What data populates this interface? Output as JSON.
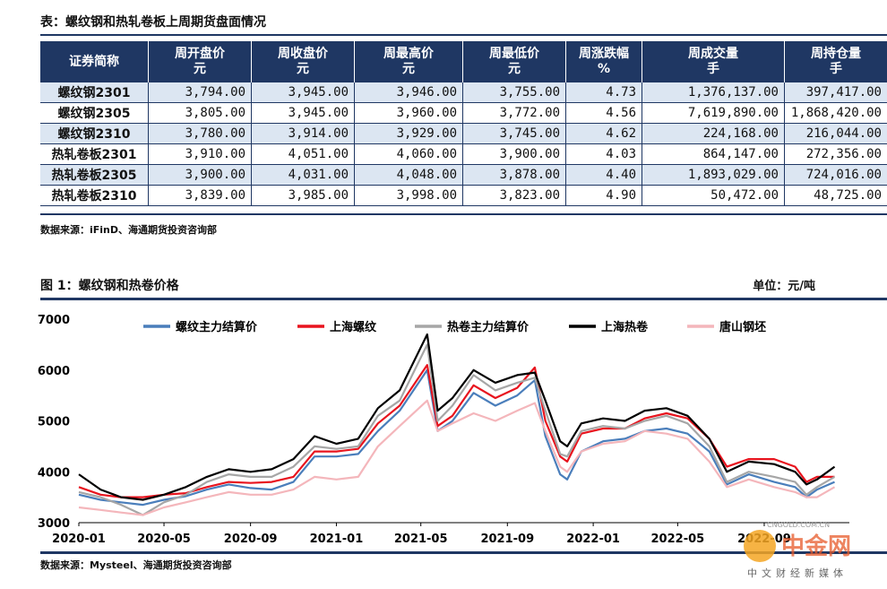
{
  "table": {
    "title": "表：螺纹钢和热轧卷板上周期货盘面情况",
    "headers": [
      {
        "line1": "证券简称",
        "line2": ""
      },
      {
        "line1": "周开盘价",
        "line2": "元"
      },
      {
        "line1": "周收盘价",
        "line2": "元"
      },
      {
        "line1": "周最高价",
        "line2": "元"
      },
      {
        "line1": "周最低价",
        "line2": "元"
      },
      {
        "line1": "周涨跌幅",
        "line2": "%"
      },
      {
        "line1": "周成交量",
        "line2": "手"
      },
      {
        "line1": "周持仓量",
        "line2": "手"
      }
    ],
    "rows": [
      [
        "螺纹钢2301",
        "3,794.00",
        "3,945.00",
        "3,946.00",
        "3,755.00",
        "4.73",
        "1,376,137.00",
        "397,417.00"
      ],
      [
        "螺纹钢2305",
        "3,805.00",
        "3,945.00",
        "3,960.00",
        "3,772.00",
        "4.56",
        "7,619,890.00",
        "1,868,420.00"
      ],
      [
        "螺纹钢2310",
        "3,780.00",
        "3,914.00",
        "3,929.00",
        "3,745.00",
        "4.62",
        "224,168.00",
        "216,044.00"
      ],
      [
        "热轧卷板2301",
        "3,910.00",
        "4,051.00",
        "4,060.00",
        "3,900.00",
        "4.03",
        "864,147.00",
        "272,356.00"
      ],
      [
        "热轧卷板2305",
        "3,900.00",
        "4,031.00",
        "4,048.00",
        "3,878.00",
        "4.40",
        "1,893,029.00",
        "724,016.00"
      ],
      [
        "热轧卷板2310",
        "3,839.00",
        "3,985.00",
        "3,998.00",
        "3,823.00",
        "4.90",
        "50,472.00",
        "48,725.00"
      ]
    ],
    "source": "数据来源：iFinD、海通期货投资咨询部"
  },
  "figure": {
    "title": "图 1：螺纹钢和热卷价格",
    "unit": "单位：元/吨",
    "source": "数据来源：Mysteel、海通期货投资咨询部"
  },
  "watermark": {
    "text": "中金网",
    "subtext": "中文财经新媒体",
    "url": "CNGOLD.COM.CN"
  },
  "chart_data": {
    "type": "line",
    "ylim": [
      3000,
      7000
    ],
    "yticks": [
      3000,
      4000,
      5000,
      6000,
      7000
    ],
    "xlim": [
      "2020-01-01",
      "2022-12-31"
    ],
    "xtick_labels": [
      "2020-01",
      "2020-05",
      "2020-09",
      "2021-01",
      "2021-05",
      "2021-09",
      "2022-01",
      "2022-05",
      "2022-09"
    ],
    "legend_position": "top",
    "grid": false,
    "series": [
      {
        "name": "螺纹主力结算价",
        "color": "#4a7ebb",
        "points": [
          [
            "2020-01-01",
            3550
          ],
          [
            "2020-02-01",
            3450
          ],
          [
            "2020-03-01",
            3400
          ],
          [
            "2020-04-01",
            3350
          ],
          [
            "2020-05-01",
            3450
          ],
          [
            "2020-06-01",
            3520
          ],
          [
            "2020-07-01",
            3650
          ],
          [
            "2020-08-01",
            3750
          ],
          [
            "2020-09-01",
            3680
          ],
          [
            "2020-10-01",
            3650
          ],
          [
            "2020-11-01",
            3800
          ],
          [
            "2020-12-01",
            4300
          ],
          [
            "2021-01-01",
            4300
          ],
          [
            "2021-02-01",
            4350
          ],
          [
            "2021-03-01",
            4800
          ],
          [
            "2021-04-01",
            5200
          ],
          [
            "2021-05-10",
            6000
          ],
          [
            "2021-05-25",
            4800
          ],
          [
            "2021-06-15",
            5000
          ],
          [
            "2021-07-15",
            5550
          ],
          [
            "2021-08-15",
            5300
          ],
          [
            "2021-09-15",
            5500
          ],
          [
            "2021-10-10",
            5800
          ],
          [
            "2021-10-25",
            4700
          ],
          [
            "2021-11-15",
            3950
          ],
          [
            "2021-11-25",
            3850
          ],
          [
            "2021-12-15",
            4400
          ],
          [
            "2022-01-15",
            4600
          ],
          [
            "2022-02-15",
            4650
          ],
          [
            "2022-03-15",
            4800
          ],
          [
            "2022-04-15",
            4850
          ],
          [
            "2022-05-15",
            4750
          ],
          [
            "2022-06-15",
            4400
          ],
          [
            "2022-07-10",
            3750
          ],
          [
            "2022-08-10",
            3950
          ],
          [
            "2022-09-15",
            3800
          ],
          [
            "2022-10-15",
            3700
          ],
          [
            "2022-10-31",
            3500
          ],
          [
            "2022-11-15",
            3650
          ],
          [
            "2022-12-10",
            3800
          ]
        ]
      },
      {
        "name": "上海螺纹",
        "color": "#e8141e",
        "points": [
          [
            "2020-01-01",
            3700
          ],
          [
            "2020-02-01",
            3550
          ],
          [
            "2020-03-01",
            3500
          ],
          [
            "2020-04-01",
            3500
          ],
          [
            "2020-05-01",
            3550
          ],
          [
            "2020-06-01",
            3580
          ],
          [
            "2020-07-01",
            3700
          ],
          [
            "2020-08-01",
            3800
          ],
          [
            "2020-09-01",
            3780
          ],
          [
            "2020-10-01",
            3800
          ],
          [
            "2020-11-01",
            3900
          ],
          [
            "2020-12-01",
            4400
          ],
          [
            "2021-01-01",
            4400
          ],
          [
            "2021-02-01",
            4450
          ],
          [
            "2021-03-01",
            4950
          ],
          [
            "2021-04-01",
            5300
          ],
          [
            "2021-05-10",
            6100
          ],
          [
            "2021-05-25",
            4900
          ],
          [
            "2021-06-15",
            5100
          ],
          [
            "2021-07-15",
            5700
          ],
          [
            "2021-08-15",
            5450
          ],
          [
            "2021-09-15",
            5650
          ],
          [
            "2021-10-10",
            6050
          ],
          [
            "2021-10-25",
            5000
          ],
          [
            "2021-11-15",
            4300
          ],
          [
            "2021-11-25",
            4200
          ],
          [
            "2021-12-15",
            4750
          ],
          [
            "2022-01-15",
            4850
          ],
          [
            "2022-02-15",
            4850
          ],
          [
            "2022-03-15",
            5050
          ],
          [
            "2022-04-15",
            5150
          ],
          [
            "2022-05-15",
            5050
          ],
          [
            "2022-06-15",
            4650
          ],
          [
            "2022-07-10",
            4100
          ],
          [
            "2022-08-10",
            4250
          ],
          [
            "2022-09-15",
            4250
          ],
          [
            "2022-10-15",
            4100
          ],
          [
            "2022-10-31",
            3800
          ],
          [
            "2022-11-15",
            3900
          ],
          [
            "2022-12-10",
            3900
          ]
        ]
      },
      {
        "name": "热卷主力结算价",
        "color": "#a6a6a6",
        "points": [
          [
            "2020-01-01",
            3600
          ],
          [
            "2020-02-01",
            3500
          ],
          [
            "2020-03-01",
            3350
          ],
          [
            "2020-04-01",
            3150
          ],
          [
            "2020-05-01",
            3400
          ],
          [
            "2020-06-01",
            3550
          ],
          [
            "2020-07-01",
            3800
          ],
          [
            "2020-08-01",
            3950
          ],
          [
            "2020-09-01",
            3900
          ],
          [
            "2020-10-01",
            3900
          ],
          [
            "2020-11-01",
            4100
          ],
          [
            "2020-12-01",
            4500
          ],
          [
            "2021-01-01",
            4450
          ],
          [
            "2021-02-01",
            4500
          ],
          [
            "2021-03-01",
            5100
          ],
          [
            "2021-04-01",
            5400
          ],
          [
            "2021-05-10",
            6500
          ],
          [
            "2021-05-25",
            5000
          ],
          [
            "2021-06-15",
            5300
          ],
          [
            "2021-07-15",
            5900
          ],
          [
            "2021-08-15",
            5600
          ],
          [
            "2021-09-15",
            5750
          ],
          [
            "2021-10-10",
            5850
          ],
          [
            "2021-10-25",
            5200
          ],
          [
            "2021-11-15",
            4350
          ],
          [
            "2021-11-25",
            4300
          ],
          [
            "2021-12-15",
            4800
          ],
          [
            "2022-01-15",
            4900
          ],
          [
            "2022-02-15",
            4850
          ],
          [
            "2022-03-15",
            5000
          ],
          [
            "2022-04-15",
            5100
          ],
          [
            "2022-05-15",
            4950
          ],
          [
            "2022-06-15",
            4500
          ],
          [
            "2022-07-10",
            3800
          ],
          [
            "2022-08-10",
            4000
          ],
          [
            "2022-09-15",
            3900
          ],
          [
            "2022-10-15",
            3800
          ],
          [
            "2022-10-31",
            3550
          ],
          [
            "2022-11-15",
            3700
          ],
          [
            "2022-12-10",
            3900
          ]
        ]
      },
      {
        "name": "上海热卷",
        "color": "#000000",
        "points": [
          [
            "2020-01-01",
            3950
          ],
          [
            "2020-02-01",
            3650
          ],
          [
            "2020-03-01",
            3500
          ],
          [
            "2020-04-01",
            3450
          ],
          [
            "2020-05-01",
            3550
          ],
          [
            "2020-06-01",
            3700
          ],
          [
            "2020-07-01",
            3900
          ],
          [
            "2020-08-01",
            4050
          ],
          [
            "2020-09-01",
            4000
          ],
          [
            "2020-10-01",
            4050
          ],
          [
            "2020-11-01",
            4250
          ],
          [
            "2020-12-01",
            4700
          ],
          [
            "2021-01-01",
            4550
          ],
          [
            "2021-02-01",
            4650
          ],
          [
            "2021-03-01",
            5250
          ],
          [
            "2021-04-01",
            5600
          ],
          [
            "2021-05-10",
            6700
          ],
          [
            "2021-05-25",
            5200
          ],
          [
            "2021-06-15",
            5450
          ],
          [
            "2021-07-15",
            6000
          ],
          [
            "2021-08-15",
            5750
          ],
          [
            "2021-09-15",
            5900
          ],
          [
            "2021-10-10",
            5950
          ],
          [
            "2021-10-25",
            5400
          ],
          [
            "2021-11-15",
            4600
          ],
          [
            "2021-11-25",
            4500
          ],
          [
            "2021-12-15",
            4950
          ],
          [
            "2022-01-15",
            5050
          ],
          [
            "2022-02-15",
            5000
          ],
          [
            "2022-03-15",
            5200
          ],
          [
            "2022-04-15",
            5250
          ],
          [
            "2022-05-15",
            5100
          ],
          [
            "2022-06-15",
            4650
          ],
          [
            "2022-07-10",
            4000
          ],
          [
            "2022-08-10",
            4200
          ],
          [
            "2022-09-15",
            4150
          ],
          [
            "2022-10-15",
            4000
          ],
          [
            "2022-10-31",
            3750
          ],
          [
            "2022-11-15",
            3850
          ],
          [
            "2022-12-10",
            4100
          ]
        ]
      },
      {
        "name": "唐山钢坯",
        "color": "#f4b6bb",
        "points": [
          [
            "2020-01-01",
            3300
          ],
          [
            "2020-02-01",
            3250
          ],
          [
            "2020-03-01",
            3200
          ],
          [
            "2020-04-01",
            3150
          ],
          [
            "2020-05-01",
            3300
          ],
          [
            "2020-06-01",
            3400
          ],
          [
            "2020-07-01",
            3500
          ],
          [
            "2020-08-01",
            3600
          ],
          [
            "2020-09-01",
            3550
          ],
          [
            "2020-10-01",
            3550
          ],
          [
            "2020-11-01",
            3650
          ],
          [
            "2020-12-01",
            3900
          ],
          [
            "2021-01-01",
            3850
          ],
          [
            "2021-02-01",
            3900
          ],
          [
            "2021-03-01",
            4500
          ],
          [
            "2021-04-01",
            4900
          ],
          [
            "2021-05-10",
            5400
          ],
          [
            "2021-05-25",
            4800
          ],
          [
            "2021-06-15",
            4950
          ],
          [
            "2021-07-15",
            5150
          ],
          [
            "2021-08-15",
            5000
          ],
          [
            "2021-09-15",
            5200
          ],
          [
            "2021-10-10",
            5350
          ],
          [
            "2021-10-25",
            4800
          ],
          [
            "2021-11-15",
            4100
          ],
          [
            "2021-11-25",
            4000
          ],
          [
            "2021-12-15",
            4400
          ],
          [
            "2022-01-15",
            4550
          ],
          [
            "2022-02-15",
            4600
          ],
          [
            "2022-03-15",
            4800
          ],
          [
            "2022-04-15",
            4750
          ],
          [
            "2022-05-15",
            4650
          ],
          [
            "2022-06-15",
            4200
          ],
          [
            "2022-07-10",
            3700
          ],
          [
            "2022-08-10",
            3850
          ],
          [
            "2022-09-15",
            3700
          ],
          [
            "2022-10-15",
            3600
          ],
          [
            "2022-10-31",
            3500
          ],
          [
            "2022-11-15",
            3500
          ],
          [
            "2022-12-10",
            3700
          ]
        ]
      }
    ]
  }
}
